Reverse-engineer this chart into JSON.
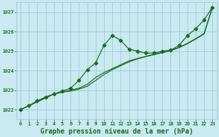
{
  "title": "Graphe pression niveau de la mer (hPa)",
  "bg_color": "#c8eaf0",
  "grid_color": "#a0c8d8",
  "line_color": "#1a6b1a",
  "xlim": [
    -0.5,
    23.5
  ],
  "ylim": [
    1021.5,
    1027.5
  ],
  "xticks": [
    0,
    1,
    2,
    3,
    4,
    5,
    6,
    7,
    8,
    9,
    10,
    11,
    12,
    13,
    14,
    15,
    16,
    17,
    18,
    19,
    20,
    21,
    22,
    23
  ],
  "yticks": [
    1022,
    1023,
    1024,
    1025,
    1026,
    1027
  ],
  "series": [
    [
      1022.0,
      1022.2,
      1022.45,
      1022.65,
      1022.8,
      1022.95,
      1023.1,
      1023.5,
      1024.05,
      1024.4,
      1025.3,
      1025.8,
      1025.55,
      1025.1,
      1025.0,
      1024.9,
      1024.9,
      1025.0,
      1025.05,
      1025.3,
      1025.8,
      1026.15,
      1026.6,
      1027.25
    ],
    [
      1022.0,
      1022.2,
      1022.4,
      1022.6,
      1022.8,
      1022.9,
      1022.95,
      1023.05,
      1023.2,
      1023.5,
      1023.8,
      1024.05,
      1024.25,
      1024.45,
      1024.6,
      1024.72,
      1024.82,
      1024.92,
      1025.02,
      1025.18,
      1025.38,
      1025.62,
      1025.88,
      1027.25
    ],
    [
      1022.0,
      1022.2,
      1022.4,
      1022.6,
      1022.8,
      1022.9,
      1023.0,
      1023.1,
      1023.3,
      1023.65,
      1023.9,
      1024.1,
      1024.3,
      1024.5,
      1024.62,
      1024.73,
      1024.84,
      1024.94,
      1025.04,
      1025.2,
      1025.4,
      1025.64,
      1025.9,
      1027.25
    ]
  ],
  "show_markers": [
    true,
    false,
    false
  ],
  "marker_style": "D",
  "marker_size": 2.5,
  "line_width": 0.9,
  "title_fontsize": 7.0,
  "tick_fontsize": 5.0
}
